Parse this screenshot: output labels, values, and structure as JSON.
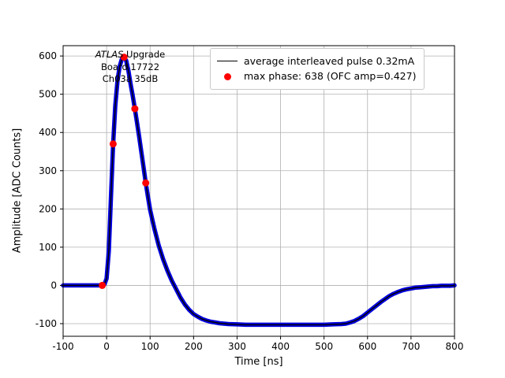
{
  "figure": {
    "background": "#ffffff",
    "annotations": {
      "line1_italic": "ATLAS",
      "line1_rest": " Upgrade",
      "line2": "Board 17722",
      "line3": "Ch03a 35dB"
    }
  },
  "chart_data": {
    "type": "line",
    "title": "",
    "xlabel": "Time [ns]",
    "ylabel": "Amplitude [ADC Counts]",
    "xlim": [
      -100,
      800
    ],
    "ylim": [
      -133,
      627
    ],
    "xticks": [
      -100,
      0,
      100,
      200,
      300,
      400,
      500,
      600,
      700,
      800
    ],
    "yticks": [
      -100,
      0,
      100,
      200,
      300,
      400,
      500,
      600
    ],
    "grid": true,
    "grid_color": "#b0b0b0",
    "legend_position": "upper right",
    "series": [
      {
        "name": "average interleaved pulse 0.32mA",
        "type": "line",
        "line_color": "#000000",
        "marker_color": "#0000dd",
        "points": [
          [
            -100,
            0
          ],
          [
            -90,
            0
          ],
          [
            -80,
            0
          ],
          [
            -70,
            0
          ],
          [
            -60,
            0
          ],
          [
            -50,
            0
          ],
          [
            -40,
            0
          ],
          [
            -30,
            0
          ],
          [
            -20,
            0
          ],
          [
            -15,
            0
          ],
          [
            -10,
            0
          ],
          [
            -5,
            3
          ],
          [
            0,
            18
          ],
          [
            5,
            90
          ],
          [
            10,
            230
          ],
          [
            15,
            370
          ],
          [
            20,
            470
          ],
          [
            25,
            535
          ],
          [
            30,
            572
          ],
          [
            35,
            592
          ],
          [
            40,
            597
          ],
          [
            45,
            588
          ],
          [
            50,
            562
          ],
          [
            55,
            528
          ],
          [
            60,
            496
          ],
          [
            65,
            462
          ],
          [
            70,
            425
          ],
          [
            75,
            388
          ],
          [
            80,
            348
          ],
          [
            85,
            308
          ],
          [
            90,
            268
          ],
          [
            95,
            232
          ],
          [
            100,
            198
          ],
          [
            110,
            148
          ],
          [
            120,
            104
          ],
          [
            130,
            68
          ],
          [
            140,
            38
          ],
          [
            150,
            12
          ],
          [
            160,
            -10
          ],
          [
            170,
            -32
          ],
          [
            180,
            -50
          ],
          [
            190,
            -64
          ],
          [
            200,
            -75
          ],
          [
            210,
            -82
          ],
          [
            220,
            -88
          ],
          [
            230,
            -92
          ],
          [
            240,
            -95
          ],
          [
            250,
            -97
          ],
          [
            260,
            -99
          ],
          [
            280,
            -101
          ],
          [
            300,
            -102
          ],
          [
            320,
            -103
          ],
          [
            340,
            -103
          ],
          [
            360,
            -103
          ],
          [
            380,
            -103
          ],
          [
            400,
            -103
          ],
          [
            420,
            -103
          ],
          [
            440,
            -103
          ],
          [
            460,
            -103
          ],
          [
            480,
            -103
          ],
          [
            500,
            -103
          ],
          [
            520,
            -102
          ],
          [
            540,
            -101
          ],
          [
            550,
            -100
          ],
          [
            560,
            -97
          ],
          [
            570,
            -93
          ],
          [
            580,
            -87
          ],
          [
            590,
            -80
          ],
          [
            600,
            -71
          ],
          [
            610,
            -62
          ],
          [
            620,
            -53
          ],
          [
            630,
            -44
          ],
          [
            640,
            -36
          ],
          [
            650,
            -28
          ],
          [
            660,
            -22
          ],
          [
            670,
            -17
          ],
          [
            680,
            -13
          ],
          [
            690,
            -10
          ],
          [
            700,
            -8
          ],
          [
            710,
            -6
          ],
          [
            720,
            -5
          ],
          [
            730,
            -4
          ],
          [
            740,
            -3
          ],
          [
            750,
            -2
          ],
          [
            760,
            -2
          ],
          [
            770,
            -1
          ],
          [
            780,
            -1
          ],
          [
            790,
            -1
          ],
          [
            800,
            0
          ]
        ]
      },
      {
        "name": "max phase: 638 (OFC amp=0.427)",
        "type": "scatter",
        "color": "#ff0000",
        "points": [
          [
            -10,
            0
          ],
          [
            15,
            370
          ],
          [
            40,
            597
          ],
          [
            65,
            462
          ],
          [
            90,
            268
          ]
        ]
      }
    ]
  }
}
